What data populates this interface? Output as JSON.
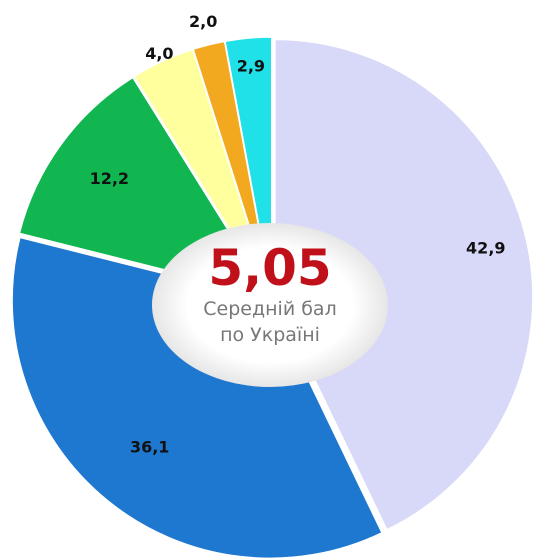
{
  "chart_data": {
    "type": "pie",
    "categories": [
      null,
      null,
      null,
      null,
      null,
      null
    ],
    "values": [
      42.9,
      36.1,
      12.2,
      4.0,
      2.0,
      2.9
    ],
    "value_labels": [
      "42,9",
      "36,1",
      "12,2",
      "4,0",
      "2,0",
      "2,9"
    ],
    "colors": [
      "#d8d8f8",
      "#1f78d0",
      "#12b650",
      "#ffff9e",
      "#f2a91f",
      "#20e0e8"
    ],
    "center_value": "5,05",
    "center_text": "Середній бал по Україні"
  }
}
